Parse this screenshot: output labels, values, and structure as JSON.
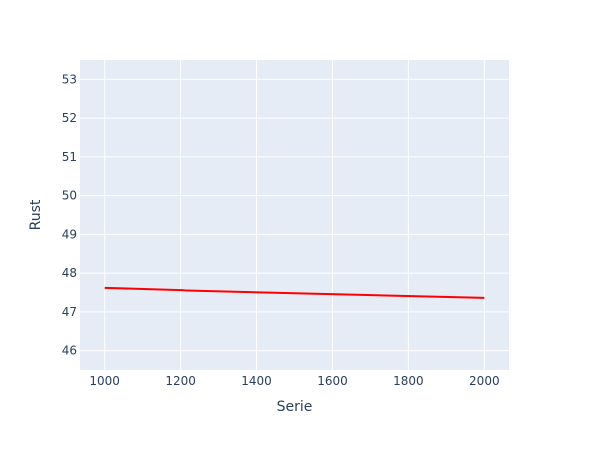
{
  "chart_data": {
    "type": "line",
    "title": "",
    "xlabel": "Serie",
    "ylabel": "Rust",
    "xlim": [
      935,
      2065
    ],
    "ylim": [
      45.5,
      53.5
    ],
    "x_ticks": [
      1000,
      1200,
      1400,
      1600,
      1800,
      2000
    ],
    "y_ticks": [
      46,
      47,
      48,
      49,
      50,
      51,
      52,
      53
    ],
    "grid": true,
    "legend": "none",
    "series": [
      {
        "color": "#ff0000",
        "x": [
          1000,
          1200,
          1205,
          1215,
          2000
        ],
        "y": [
          47.62,
          47.56,
          47.56,
          47.55,
          47.36
        ]
      }
    ]
  },
  "colors": {
    "plot_background": "#e5ecf6",
    "grid": "#ffffff",
    "text": "#2a3f5f"
  }
}
